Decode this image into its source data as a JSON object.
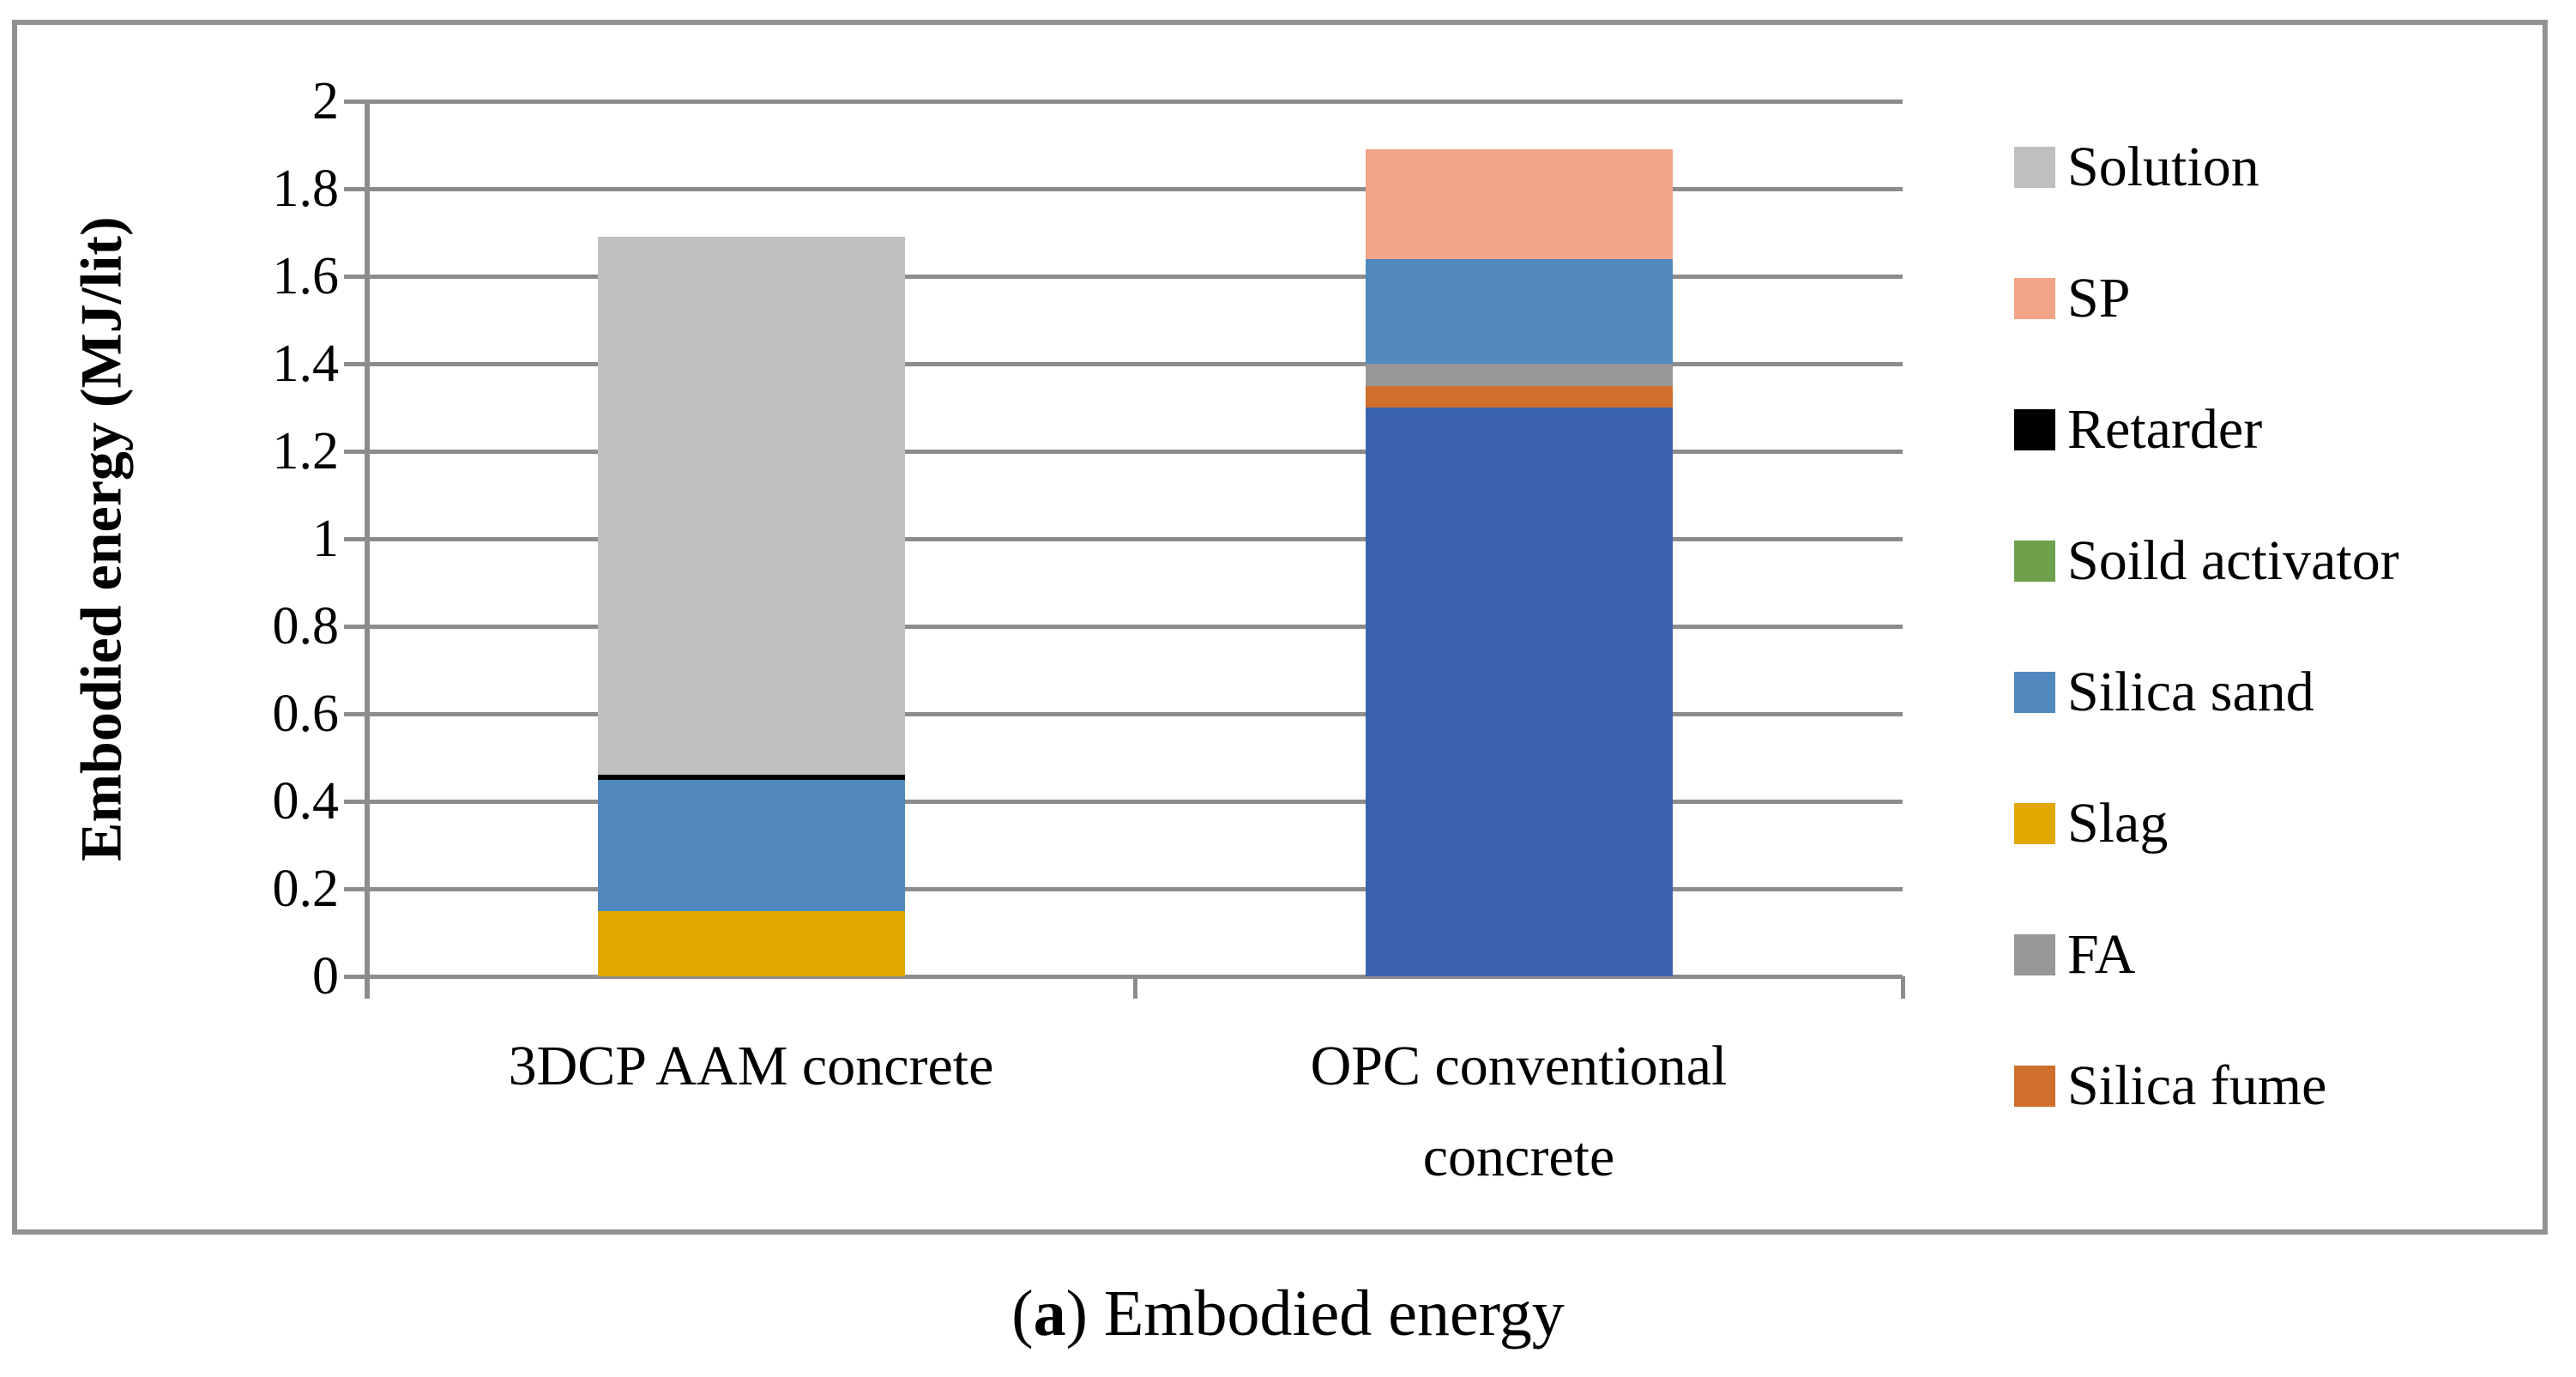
{
  "figure": {
    "caption": {
      "open": "(",
      "letter": "a",
      "rest": ") Embodied energy"
    }
  },
  "chart_data": {
    "type": "bar",
    "stacked": true,
    "orientation": "vertical",
    "title": "",
    "xlabel": "",
    "ylabel": "Embodied energy (MJ/lit)",
    "ylim": [
      0,
      2
    ],
    "y_ticks": [
      0,
      0.2,
      0.4,
      0.6,
      0.8,
      1,
      1.2,
      1.4,
      1.6,
      1.8,
      2
    ],
    "y_tick_labels": [
      "0",
      "0.2",
      "0.4",
      "0.6",
      "0.8",
      "1",
      "1.2",
      "1.4",
      "1.6",
      "1.8",
      "2"
    ],
    "grid": true,
    "categories": [
      "3DCP AAM concrete",
      "OPC conventional concrete"
    ],
    "category_totals": [
      1.69,
      1.89
    ],
    "series": [
      {
        "name": "unlabeled-dark-blue",
        "color": "#3B62AC",
        "values": [
          0,
          1.3
        ]
      },
      {
        "name": "Slag",
        "color": "#E1A900",
        "values": [
          0.15,
          0
        ]
      },
      {
        "name": "Silica fume",
        "color": "#D06F2B",
        "values": [
          0,
          0.05
        ]
      },
      {
        "name": "FA",
        "color": "#979797",
        "values": [
          0,
          0.05
        ]
      },
      {
        "name": "Silica sand",
        "color": "#5089BE",
        "values": [
          0.3,
          0.24
        ]
      },
      {
        "name": "Retarder",
        "color": "#000000",
        "values": [
          0.01,
          0
        ]
      },
      {
        "name": "SP",
        "color": "#F1A487",
        "values": [
          0,
          0.25
        ]
      },
      {
        "name": "Solution",
        "color": "#BFBFBF",
        "values": [
          1.23,
          0
        ]
      },
      {
        "name": "Soild activator",
        "color": "#6FA04C",
        "values": [
          0,
          0
        ]
      }
    ],
    "legend": {
      "position": "right",
      "entries": [
        {
          "label": "Solution",
          "color": "#BFBFBF"
        },
        {
          "label": "SP",
          "color": "#F1A487"
        },
        {
          "label": "Retarder",
          "color": "#000000"
        },
        {
          "label": "Soild activator",
          "color": "#6FA04C"
        },
        {
          "label": "Silica sand",
          "color": "#5089BE"
        },
        {
          "label": "Slag",
          "color": "#E1A900"
        },
        {
          "label": "FA",
          "color": "#979797"
        },
        {
          "label": "Silica fume",
          "color": "#D06F2B"
        }
      ]
    },
    "colors": {
      "gridline": "#8C8C8C",
      "axis": "#8C8C8C",
      "border": "#919191",
      "background": "#FFFFFF"
    },
    "note": "Bottom dark-blue segment of the OPC bar has no visible legend entry in the image."
  }
}
